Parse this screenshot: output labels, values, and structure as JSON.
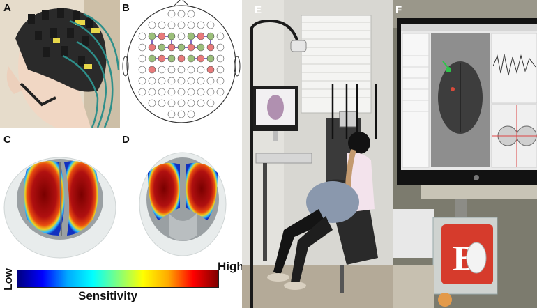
{
  "panels": {
    "a": {
      "letter": "A"
    },
    "b": {
      "letter": "B"
    },
    "c": {
      "letter": "C"
    },
    "d": {
      "letter": "D"
    },
    "e": {
      "letter": "E"
    },
    "f": {
      "letter": "F"
    }
  },
  "colorbar": {
    "low_label": "Low",
    "high_label": "High",
    "title": "Sensitivity",
    "colors": [
      "#00007f",
      "#0000ff",
      "#00aaff",
      "#00ffff",
      "#7fff7f",
      "#ffff00",
      "#ffaa00",
      "#ff0000",
      "#7f0000"
    ]
  },
  "montage": {
    "colors": {
      "source": "#e87a7a",
      "detector": "#9bbf7a",
      "channel": "#4a2aa8",
      "empty": "#ffffff"
    }
  },
  "logo": {
    "letter": "B"
  }
}
